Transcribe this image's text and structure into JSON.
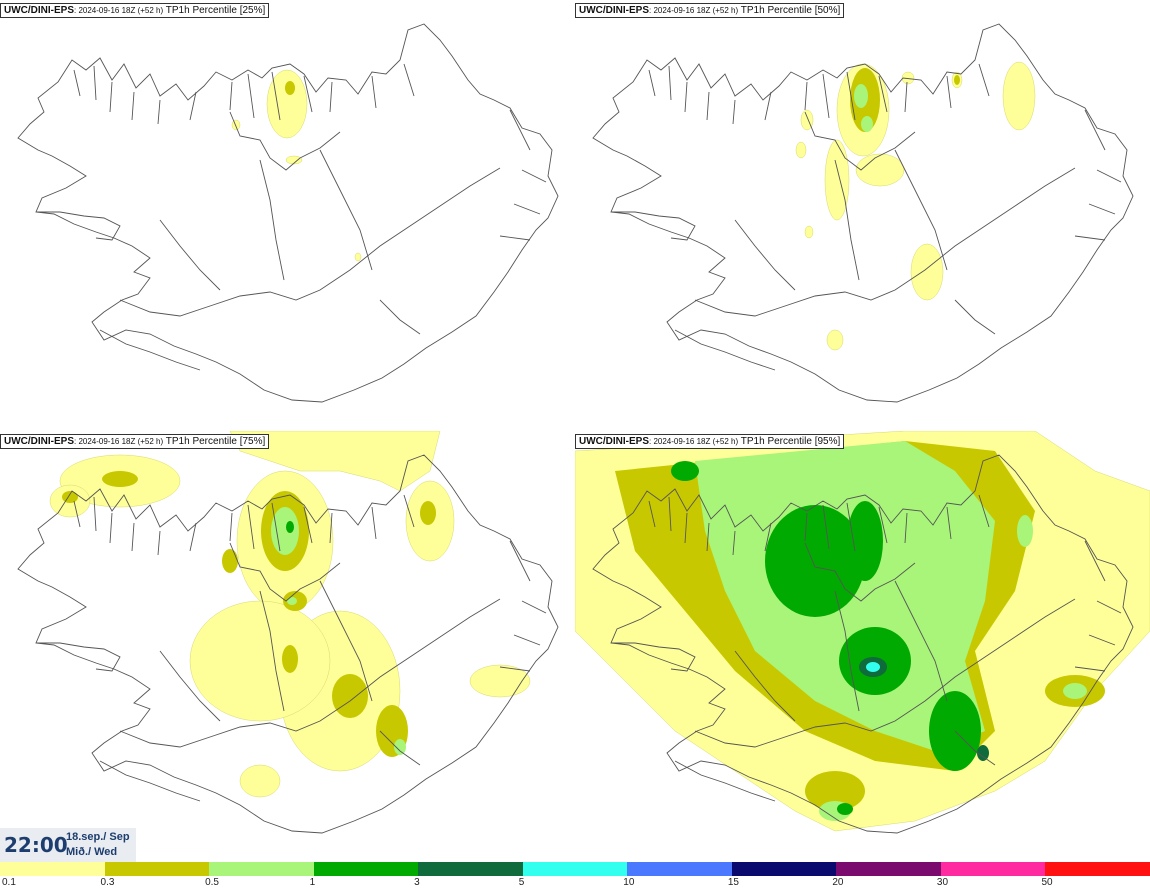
{
  "panels": [
    {
      "model": "UWC/DINI-EPS",
      "run": ": 2024-09-16 18Z (+52 h)",
      "field": " TP1h Percentile [25%]"
    },
    {
      "model": "UWC/DINI-EPS",
      "run": ": 2024-09-16 18Z (+52 h)",
      "field": " TP1h Percentile [50%]"
    },
    {
      "model": "UWC/DINI-EPS",
      "run": ": 2024-09-16 18Z (+52 h)",
      "field": " TP1h Percentile [75%]"
    },
    {
      "model": "UWC/DINI-EPS",
      "run": ": 2024-09-16 18Z (+52 h)",
      "field": " TP1h Percentile [95%]"
    }
  ],
  "valid_time": {
    "clock": "22:00",
    "date": "18.sep./ Sep",
    "day": "Mið./ Wed"
  },
  "legend": {
    "labels": [
      "0.1",
      "0.3",
      "0.5",
      "1",
      "3",
      "5",
      "10",
      "15",
      "20",
      "30",
      "50"
    ],
    "colors": [
      "#ffff99",
      "#c8c800",
      "#a8f57a",
      "#00aa00",
      "#0f6a3c",
      "#33ffee",
      "#4a78ff",
      "#0a0a6e",
      "#7a0a6e",
      "#ff2aa0",
      "#ff1111"
    ]
  }
}
